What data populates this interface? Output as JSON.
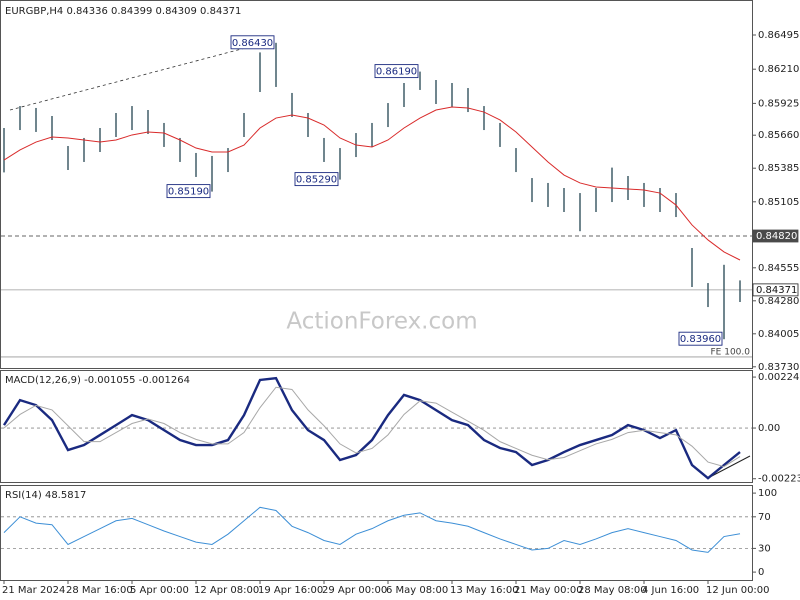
{
  "chart_data": [
    {
      "type": "ohlc",
      "title": "EURGBP,H4  0.84336 0.84399 0.84309 0.84371",
      "watermark": "ActionForex.com",
      "categories": [
        "21 Mar 2024",
        null,
        null,
        null,
        "28 Mar 16:00",
        null,
        null,
        null,
        "5 Apr 00:00",
        null,
        null,
        null,
        "12 Apr 08:00",
        null,
        null,
        null,
        "19 Apr 16:00",
        null,
        null,
        null,
        "29 Apr 00:00",
        null,
        null,
        null,
        "6 May 08:00",
        null,
        null,
        null,
        "13 May 16:00",
        null,
        null,
        null,
        "21 May 00:00",
        null,
        null,
        null,
        "28 May 08:00",
        null,
        null,
        null,
        "4 Jun 16:00",
        null,
        null,
        null,
        "12 Jun 00:00",
        null,
        null
      ],
      "high": [
        0.8572,
        0.85903,
        0.85887,
        0.8582,
        0.8557,
        0.85637,
        0.8572,
        0.85845,
        0.85903,
        0.8587,
        0.85762,
        0.85637,
        0.85512,
        0.85487,
        0.85553,
        0.85845,
        0.8635,
        0.8643,
        0.86012,
        0.85845,
        0.85637,
        0.85553,
        0.85678,
        0.85762,
        0.85928,
        0.86095,
        0.8619,
        0.8612,
        0.86095,
        0.86053,
        0.85903,
        0.85762,
        0.85553,
        0.85303,
        0.85262,
        0.8522,
        0.85178,
        0.8522,
        0.8539,
        0.8532,
        0.85262,
        0.8522,
        0.85178,
        0.8472,
        0.84428,
        0.8458,
        0.8445
      ],
      "low": [
        0.8535,
        0.85703,
        0.85687,
        0.8562,
        0.8537,
        0.85437,
        0.8552,
        0.85645,
        0.85703,
        0.8567,
        0.85562,
        0.85437,
        0.85312,
        0.8519,
        0.85353,
        0.85645,
        0.8602,
        0.86062,
        0.85812,
        0.85645,
        0.85437,
        0.8529,
        0.85478,
        0.85562,
        0.85728,
        0.85895,
        0.86037,
        0.8592,
        0.85895,
        0.85853,
        0.85703,
        0.85562,
        0.85353,
        0.85103,
        0.85062,
        0.8502,
        0.8486,
        0.8502,
        0.85103,
        0.8512,
        0.85062,
        0.8502,
        0.84978,
        0.84395,
        0.84228,
        0.8396,
        0.8427
      ],
      "bar_color": "#34525e",
      "ma": [
        0.85453,
        0.85537,
        0.85603,
        0.85645,
        0.85637,
        0.8562,
        0.85603,
        0.8562,
        0.85662,
        0.85687,
        0.85678,
        0.8562,
        0.85553,
        0.8552,
        0.8552,
        0.85578,
        0.8572,
        0.85803,
        0.85828,
        0.85803,
        0.85745,
        0.85637,
        0.85578,
        0.85562,
        0.8562,
        0.8572,
        0.85803,
        0.8587,
        0.85895,
        0.85887,
        0.85853,
        0.85787,
        0.85687,
        0.85562,
        0.85437,
        0.85328,
        0.85262,
        0.85228,
        0.8522,
        0.85212,
        0.85203,
        0.85178,
        0.85078,
        0.84912,
        0.84787,
        0.84687,
        0.8462
      ],
      "ma_color": "#d92b2b",
      "ylim": [
        0.8372,
        0.8677
      ],
      "yticks": [
        0.86495,
        {
          "value": 0.8621,
          "label": "0.86210"
        },
        0.85925,
        {
          "value": 0.8566,
          "label": "0.85660"
        },
        0.85385,
        0.85105,
        0.84555,
        {
          "value": 0.8428,
          "label": "0.84280"
        },
        0.84005,
        {
          "value": 0.8373,
          "label": "0.83730"
        }
      ],
      "hlines": [
        {
          "value": 0.8482,
          "label": "0.84820",
          "style": "dashed",
          "label_box": "dark"
        },
        {
          "value": 0.84371,
          "label": "0.84371",
          "style": "solid",
          "label_box": "light"
        },
        {
          "value": 0.83812,
          "label": "FE 100.0",
          "style": "solid",
          "label_box": "none"
        }
      ],
      "annotations": [
        {
          "label": "0.86430",
          "value": 0.8643,
          "at": "high"
        },
        {
          "label": "0.85190",
          "value": 0.8519,
          "at": "low"
        },
        {
          "label": "0.85290",
          "value": 0.8529,
          "at": "low"
        },
        {
          "label": "0.86190",
          "value": 0.8619,
          "at": "high"
        },
        {
          "label": "0.83960",
          "value": 0.8396,
          "at": "low"
        }
      ]
    },
    {
      "type": "line",
      "title": "MACD(12,26,9) -0.001055 -0.001264",
      "series": [
        {
          "color": "#1a2a80",
          "width": 2.4,
          "values": [
            0.00013,
            0.00123,
            0.00101,
            0.00035,
            -0.00097,
            -0.00075,
            -0.00031,
            0.00013,
            0.00057,
            0.00035,
            -9e-05,
            -0.00053,
            -0.00075,
            -0.00075,
            -0.00053,
            0.00057,
            0.00212,
            0.0022,
            0.00079,
            -9e-05,
            -0.00053,
            -0.00141,
            -0.00119,
            -0.00053,
            0.00057,
            0.00146,
            0.00123,
            0.00079,
            0.00035,
            0.00013,
            -0.00053,
            -0.00088,
            -0.00106,
            -0.00163,
            -0.00141,
            -0.00106,
            -0.00075,
            -0.00053,
            -0.00031,
            0.00013,
            -9e-05,
            -0.00044,
            -9e-05,
            -0.00163,
            -0.00221,
            -0.00163,
            -0.00106
          ]
        },
        {
          "color": "#a8a8a8",
          "width": 1,
          "values": [
            0,
            0.0006,
            0.001,
            0.0008,
            0.0001,
            -0.0006,
            -0.0006,
            -0.0002,
            0.0002,
            0.0004,
            0.0002,
            -0.0002,
            -0.0005,
            -0.0007,
            -0.0007,
            -0.0002,
            0.0009,
            0.0018,
            0.0017,
            0.0008,
            0.0001,
            -0.0007,
            -0.0011,
            -0.0009,
            -0.0003,
            0.0006,
            0.0012,
            0.0011,
            0.0007,
            0.0003,
            -0.0001,
            -0.0006,
            -0.0009,
            -0.0012,
            -0.0014,
            -0.0013,
            -0.001,
            -0.0007,
            -0.0005,
            -0.0002,
            -0.0001,
            -0.0002,
            -0.0003,
            -0.0008,
            -0.0015,
            -0.0017,
            -0.00126
          ]
        }
      ],
      "ylim": [
        -0.00238,
        0.00256
      ],
      "yticks": [
        0.002248,
        {
          "value": 0,
          "label": "0.00"
        },
        -0.002236
      ],
      "levels": [
        0
      ]
    },
    {
      "type": "line",
      "title": "RSI(14) 48.5817",
      "series": [
        {
          "color": "#3d8fd6",
          "width": 1,
          "values": [
            50,
            70,
            62,
            60,
            35,
            45,
            55,
            65,
            68,
            60,
            52,
            45,
            38,
            35,
            48,
            65,
            82,
            78,
            58,
            50,
            40,
            35,
            48,
            55,
            65,
            72,
            75,
            65,
            62,
            58,
            50,
            42,
            35,
            28,
            30,
            40,
            35,
            42,
            50,
            55,
            50,
            45,
            40,
            28,
            25,
            45,
            48.5817
          ]
        }
      ],
      "ylim": [
        -10,
        109
      ],
      "yticks": [
        100,
        70,
        30,
        0
      ],
      "levels": [
        30,
        70
      ]
    }
  ]
}
